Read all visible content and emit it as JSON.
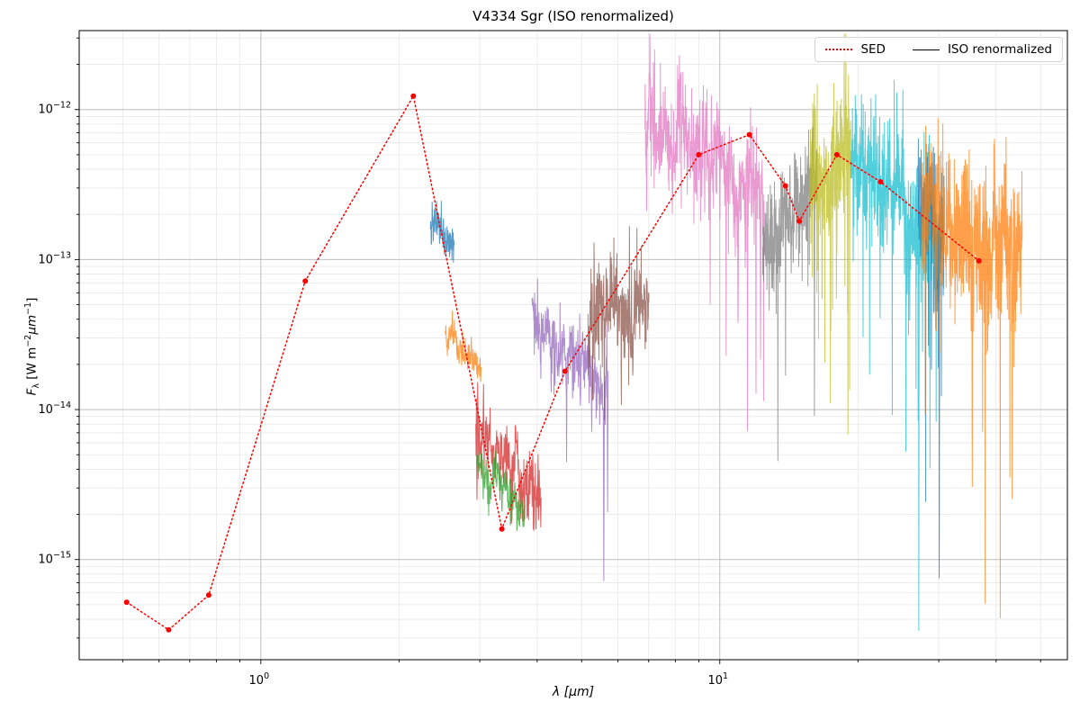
{
  "title": "V4334 Sgr (ISO renormalized)",
  "chart_data": {
    "type": "line",
    "title": "V4334 Sgr (ISO renormalized)",
    "xlabel": "λ [μm]",
    "ylabel": "F_λ [W m⁻²μm⁻¹]",
    "xscale": "log",
    "yscale": "log",
    "xlim": [
      0.402,
      57.2
    ],
    "ylim": [
      2.15e-16,
      3.36e-12
    ],
    "x_tick_exponents": [
      0,
      1
    ],
    "y_tick_exponents": [
      -12,
      -13,
      -14,
      -15
    ],
    "grid": {
      "major": true,
      "minor": true,
      "major_color": "#bdbdbd",
      "minor_color": "#e7e7e7"
    },
    "legend": {
      "position": "upper right",
      "entries": [
        {
          "label": "SED",
          "color": "#ff0000",
          "style": "dotted"
        },
        {
          "label": "ISO renormalized",
          "color": "#000000",
          "style": "solid"
        }
      ]
    },
    "sed_series": {
      "name": "SED",
      "color": "#ff0000",
      "linestyle": "dotted",
      "marker": "point",
      "marker_size": 3,
      "points": [
        [
          0.51,
          5.2e-16
        ],
        [
          0.63,
          3.4e-16
        ],
        [
          0.77,
          5.8e-16
        ],
        [
          1.25,
          7.2e-14
        ],
        [
          2.15,
          1.23e-12
        ],
        [
          3.35,
          1.6e-15
        ],
        [
          4.6,
          1.8e-14
        ],
        [
          9.0,
          5e-13
        ],
        [
          11.6,
          6.8e-13
        ],
        [
          13.9,
          3.1e-13
        ],
        [
          14.9,
          1.8e-13
        ],
        [
          18.0,
          5e-13
        ],
        [
          22.4,
          3.3e-13
        ],
        [
          36.7,
          9.8e-14
        ]
      ]
    },
    "segment_alpha": 0.75,
    "iso_segments": [
      {
        "id": "seg-01",
        "color": "#1f77b4",
        "lambda_range": [
          2.34,
          2.64
        ],
        "logf_start": -12.74,
        "logf_end": -12.88,
        "noise_dex": 0.055,
        "n_points": 130,
        "seed": 101,
        "up_spikes": [
          {
            "t": 0.08,
            "h": 0.16
          },
          {
            "t": 0.55,
            "h": 0.13
          }
        ],
        "down_spikes": [
          {
            "t": 0.38,
            "d": 0.12
          },
          {
            "t": 0.8,
            "d": 0.1
          }
        ]
      },
      {
        "id": "seg-02",
        "color": "#ff7f0e",
        "lambda_range": [
          2.52,
          3.02
        ],
        "logf_start": -13.5,
        "logf_end": -13.72,
        "noise_dex": 0.05,
        "n_points": 140,
        "seed": 102,
        "up_spikes": [
          {
            "t": 0.25,
            "h": 0.1
          },
          {
            "t": 0.45,
            "h": 0.08
          }
        ],
        "down_spikes": [
          {
            "t": 0.05,
            "d": 0.12
          }
        ]
      },
      {
        "id": "seg-03",
        "color": "#d62728",
        "lambda_range": [
          2.94,
          4.08
        ],
        "logf_start": -14.1,
        "logf_end": -14.58,
        "noise_dex": 0.1,
        "n_points": 220,
        "seed": 103,
        "p_down": 0.02,
        "down_max": 0.35,
        "up_spikes": [
          {
            "t": 0.03,
            "h": 0.28
          },
          {
            "t": 0.12,
            "h": 0.3
          },
          {
            "t": 0.3,
            "h": 0.15
          }
        ],
        "down_spikes": [
          {
            "t": 0.02,
            "d": 0.4
          },
          {
            "t": 0.08,
            "d": 0.3
          },
          {
            "t": 0.55,
            "d": 0.25
          }
        ]
      },
      {
        "id": "seg-04",
        "color": "#2ca02c",
        "lambda_range": [
          2.96,
          3.76
        ],
        "logf_start": -14.4,
        "logf_end": -14.66,
        "noise_dex": 0.07,
        "n_points": 150,
        "seed": 104,
        "down_spikes": [
          {
            "t": 0.88,
            "d": 0.15
          }
        ]
      },
      {
        "id": "seg-05",
        "color": "#9467bd",
        "lambda_range": [
          3.9,
          5.72
        ],
        "logf_start": -13.38,
        "logf_end": -13.85,
        "noise_dex": 0.11,
        "n_points": 280,
        "seed": 105,
        "p_down": 0.03,
        "down_max": 0.5,
        "down_spikes": [
          {
            "t": 0.25,
            "d": 0.5
          },
          {
            "t": 0.45,
            "d": 0.55
          },
          {
            "t": 0.63,
            "d": 0.6
          },
          {
            "t": 0.78,
            "d": 0.5
          },
          {
            "t": 0.94,
            "d": 1.35
          },
          {
            "t": 0.99,
            "d": 0.8
          }
        ]
      },
      {
        "id": "seg-06",
        "color": "#8c564b",
        "lambda_range": [
          5.16,
          7.01
        ],
        "logf_start": -13.42,
        "logf_end": -13.3,
        "noise_dex": 0.14,
        "n_points": 260,
        "seed": 106,
        "p_down": 0.02,
        "down_max": 0.5,
        "up_spikes": [
          {
            "t": 0.05,
            "h": 0.5
          },
          {
            "t": 0.1,
            "h": 0.45
          },
          {
            "t": 0.3,
            "h": 0.3
          },
          {
            "t": 0.5,
            "h": 0.3
          },
          {
            "t": 0.68,
            "h": 0.28
          }
        ],
        "down_spikes": [
          {
            "t": 0.27,
            "d": 0.5
          },
          {
            "t": 0.55,
            "d": 0.45
          },
          {
            "t": 0.98,
            "d": 0.3
          }
        ]
      },
      {
        "id": "seg-07",
        "color": "#e377c2",
        "lambda_range": [
          6.87,
          12.5
        ],
        "logf_start": -12.12,
        "logf_end": -12.55,
        "noise_dex": 0.17,
        "n_points": 520,
        "seed": 107,
        "p_down": 0.03,
        "down_max": 0.8,
        "p_up": 0.02,
        "up_max": 0.3,
        "up_spikes": [
          {
            "t": 0.04,
            "h": 0.4
          },
          {
            "t": 0.08,
            "h": 0.45
          },
          {
            "t": 0.13,
            "h": 0.35
          },
          {
            "t": 0.3,
            "h": 0.3
          }
        ],
        "down_spikes": [
          {
            "t": 0.5,
            "d": 0.7
          },
          {
            "t": 0.68,
            "d": 0.9
          },
          {
            "t": 0.78,
            "d": 1.2
          },
          {
            "t": 0.86,
            "d": 1.5
          },
          {
            "t": 0.93,
            "d": 1.9
          },
          {
            "t": 0.97,
            "d": 1.4
          }
        ]
      },
      {
        "id": "seg-08",
        "color": "#7f7f7f",
        "lambda_range": [
          12.4,
          16.3
        ],
        "logf_start": -12.9,
        "logf_end": -12.48,
        "noise_dex": 0.15,
        "n_points": 320,
        "seed": 108,
        "p_down": 0.03,
        "down_max": 0.8,
        "up_spikes": [
          {
            "t": 0.5,
            "h": 0.35
          },
          {
            "t": 0.58,
            "h": 0.3
          }
        ],
        "down_spikes": [
          {
            "t": 0.12,
            "d": 0.6
          },
          {
            "t": 0.28,
            "d": 0.9
          },
          {
            "t": 0.42,
            "d": 1.1
          },
          {
            "t": 0.72,
            "d": 0.8
          },
          {
            "t": 0.95,
            "d": 1.5
          }
        ]
      },
      {
        "id": "seg-09",
        "color": "#bcbd22",
        "lambda_range": [
          15.7,
          19.3
        ],
        "logf_start": -12.45,
        "logf_end": -12.3,
        "noise_dex": 0.2,
        "n_points": 300,
        "seed": 109,
        "p_down": 0.05,
        "down_max": 1.6,
        "up_spikes": [
          {
            "t": 0.78,
            "h": 0.5
          },
          {
            "t": 0.84,
            "h": 0.72
          },
          {
            "t": 0.88,
            "h": 0.55
          }
        ],
        "down_spikes": [
          {
            "t": 0.3,
            "d": 1.0
          },
          {
            "t": 0.5,
            "d": 1.3
          },
          {
            "t": 0.65,
            "d": 0.9
          },
          {
            "t": 0.93,
            "d": 2.0
          },
          {
            "t": 0.97,
            "d": 1.6
          }
        ]
      },
      {
        "id": "seg-10",
        "color": "#17becf",
        "lambda_range": [
          19.3,
          30.6
        ],
        "logf_start": -12.32,
        "logf_end": -12.85,
        "noise_dex": 0.2,
        "n_points": 520,
        "seed": 110,
        "p_down": 0.04,
        "down_max": 1.6,
        "up_spikes": [
          {
            "t": 0.27,
            "h": 0.52
          },
          {
            "t": 0.3,
            "h": 0.35
          }
        ],
        "down_spikes": [
          {
            "t": 0.45,
            "d": 1.5
          },
          {
            "t": 0.6,
            "d": 1.8
          },
          {
            "t": 0.74,
            "d": 2.2
          },
          {
            "t": 0.85,
            "d": 1.6
          }
        ]
      },
      {
        "id": "seg-11",
        "color": "#1f77b4",
        "lambda_range": [
          27.0,
          30.8
        ],
        "logf_start": -12.55,
        "logf_end": -12.85,
        "noise_dex": 0.18,
        "n_points": 170,
        "seed": 111,
        "p_down": 0.04,
        "down_max": 1.5,
        "up_spikes": [
          {
            "t": 0.6,
            "h": 0.8
          },
          {
            "t": 0.64,
            "h": 0.55
          }
        ],
        "down_spikes": [
          {
            "t": 0.3,
            "d": 1.8
          },
          {
            "t": 0.52,
            "d": 1.3
          },
          {
            "t": 0.82,
            "d": 2.1
          }
        ]
      },
      {
        "id": "seg-12",
        "color": "#ff7f0e",
        "lambda_range": [
          27.6,
          45.6
        ],
        "logf_start": -12.7,
        "logf_end": -12.95,
        "noise_dex": 0.22,
        "n_points": 620,
        "seed": 112,
        "p_down": 0.04,
        "down_max": 1.8,
        "p_up": 0.03,
        "up_max": 0.4,
        "up_spikes": [
          {
            "t": 0.1,
            "h": 0.35
          },
          {
            "t": 0.45,
            "h": 0.4
          },
          {
            "t": 0.83,
            "h": 0.45
          }
        ],
        "down_spikes": [
          {
            "t": 0.5,
            "d": 2.3
          },
          {
            "t": 0.63,
            "d": 2.0
          },
          {
            "t": 0.78,
            "d": 2.3
          },
          {
            "t": 0.9,
            "d": 1.9
          }
        ]
      }
    ]
  },
  "labels_display": {
    "xlabel": {
      "sym": "λ",
      "units": " [μm]"
    },
    "ylabel": {
      "f": "F",
      "sub": "λ",
      "u1": " [W m",
      "e1": "−2",
      "u2": "μm",
      "e2": "−1",
      "u3": "]"
    }
  }
}
